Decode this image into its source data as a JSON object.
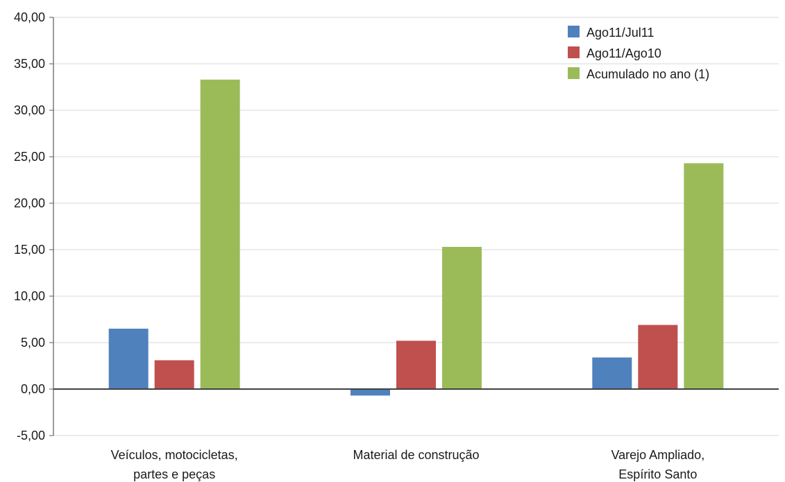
{
  "chart_data": {
    "type": "bar",
    "categories": [
      [
        "Veículos, motocicletas,",
        "partes e peças"
      ],
      [
        "Material de construção"
      ],
      [
        "Varejo Ampliado,",
        "Espírito Santo"
      ]
    ],
    "series": [
      {
        "name": "Ago11/Jul11",
        "color": "#4f81bd",
        "values": [
          6.5,
          -0.7,
          3.4
        ]
      },
      {
        "name": "Ago11/Ago10",
        "color": "#c0504d",
        "values": [
          3.1,
          5.2,
          6.9
        ]
      },
      {
        "name": "Acumulado no ano (1)",
        "color": "#9bbb59",
        "values": [
          33.3,
          15.3,
          24.3
        ]
      }
    ],
    "ylim": [
      -5,
      40
    ],
    "yticks": [
      -5,
      0,
      5,
      10,
      15,
      20,
      25,
      30,
      35,
      40
    ],
    "ytick_labels": [
      "-5,00",
      "0,00",
      "5,00",
      "10,00",
      "15,00",
      "20,00",
      "25,00",
      "30,00",
      "35,00",
      "40,00"
    ],
    "grid": true,
    "legend_position": "top-right",
    "title": "",
    "xlabel": "",
    "ylabel": ""
  }
}
